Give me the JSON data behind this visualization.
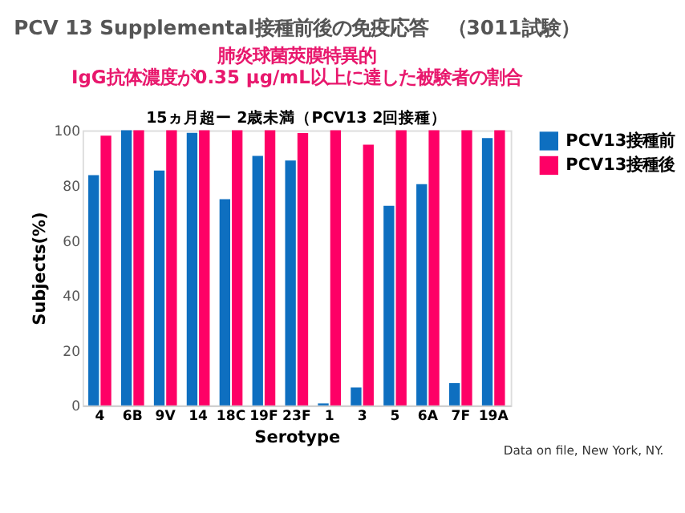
{
  "chart_data": {
    "type": "bar",
    "title": "PCV 13 Supplemental接種前後の免疫応答　（3011試験）",
    "subtitle": "肺炎球菌莢膜特異的\nIgG抗体濃度が0.35 μg/mL以上に達した被験者の割合",
    "annotations": [
      "15ヵ月超ー 2歳未満（PCV13  2回接種）",
      "Data on file, New York, NY."
    ],
    "xlabel": "Serotype",
    "ylabel": "Subjects(%)",
    "categories": [
      "4",
      "6B",
      "9V",
      "14",
      "18C",
      "19F",
      "23F",
      "1",
      "3",
      "5",
      "6A",
      "7F",
      "19A"
    ],
    "series": [
      {
        "name": "PCV13接種前",
        "color": "#0e6fc0",
        "values": [
          83.7,
          100,
          85.4,
          99.1,
          75,
          90.7,
          89,
          0.7,
          6.5,
          72.6,
          80.4,
          8.1,
          97.2
        ]
      },
      {
        "name": "PCV13接種後",
        "color": "#fe0066",
        "values": [
          98.1,
          100,
          100,
          100,
          100,
          100,
          99,
          100,
          94.8,
          100,
          100,
          100,
          100
        ]
      }
    ],
    "ylim": [
      0,
      100
    ],
    "yticks": [
      0,
      20,
      40,
      60,
      80,
      100
    ],
    "grid": false,
    "legend": "right"
  }
}
